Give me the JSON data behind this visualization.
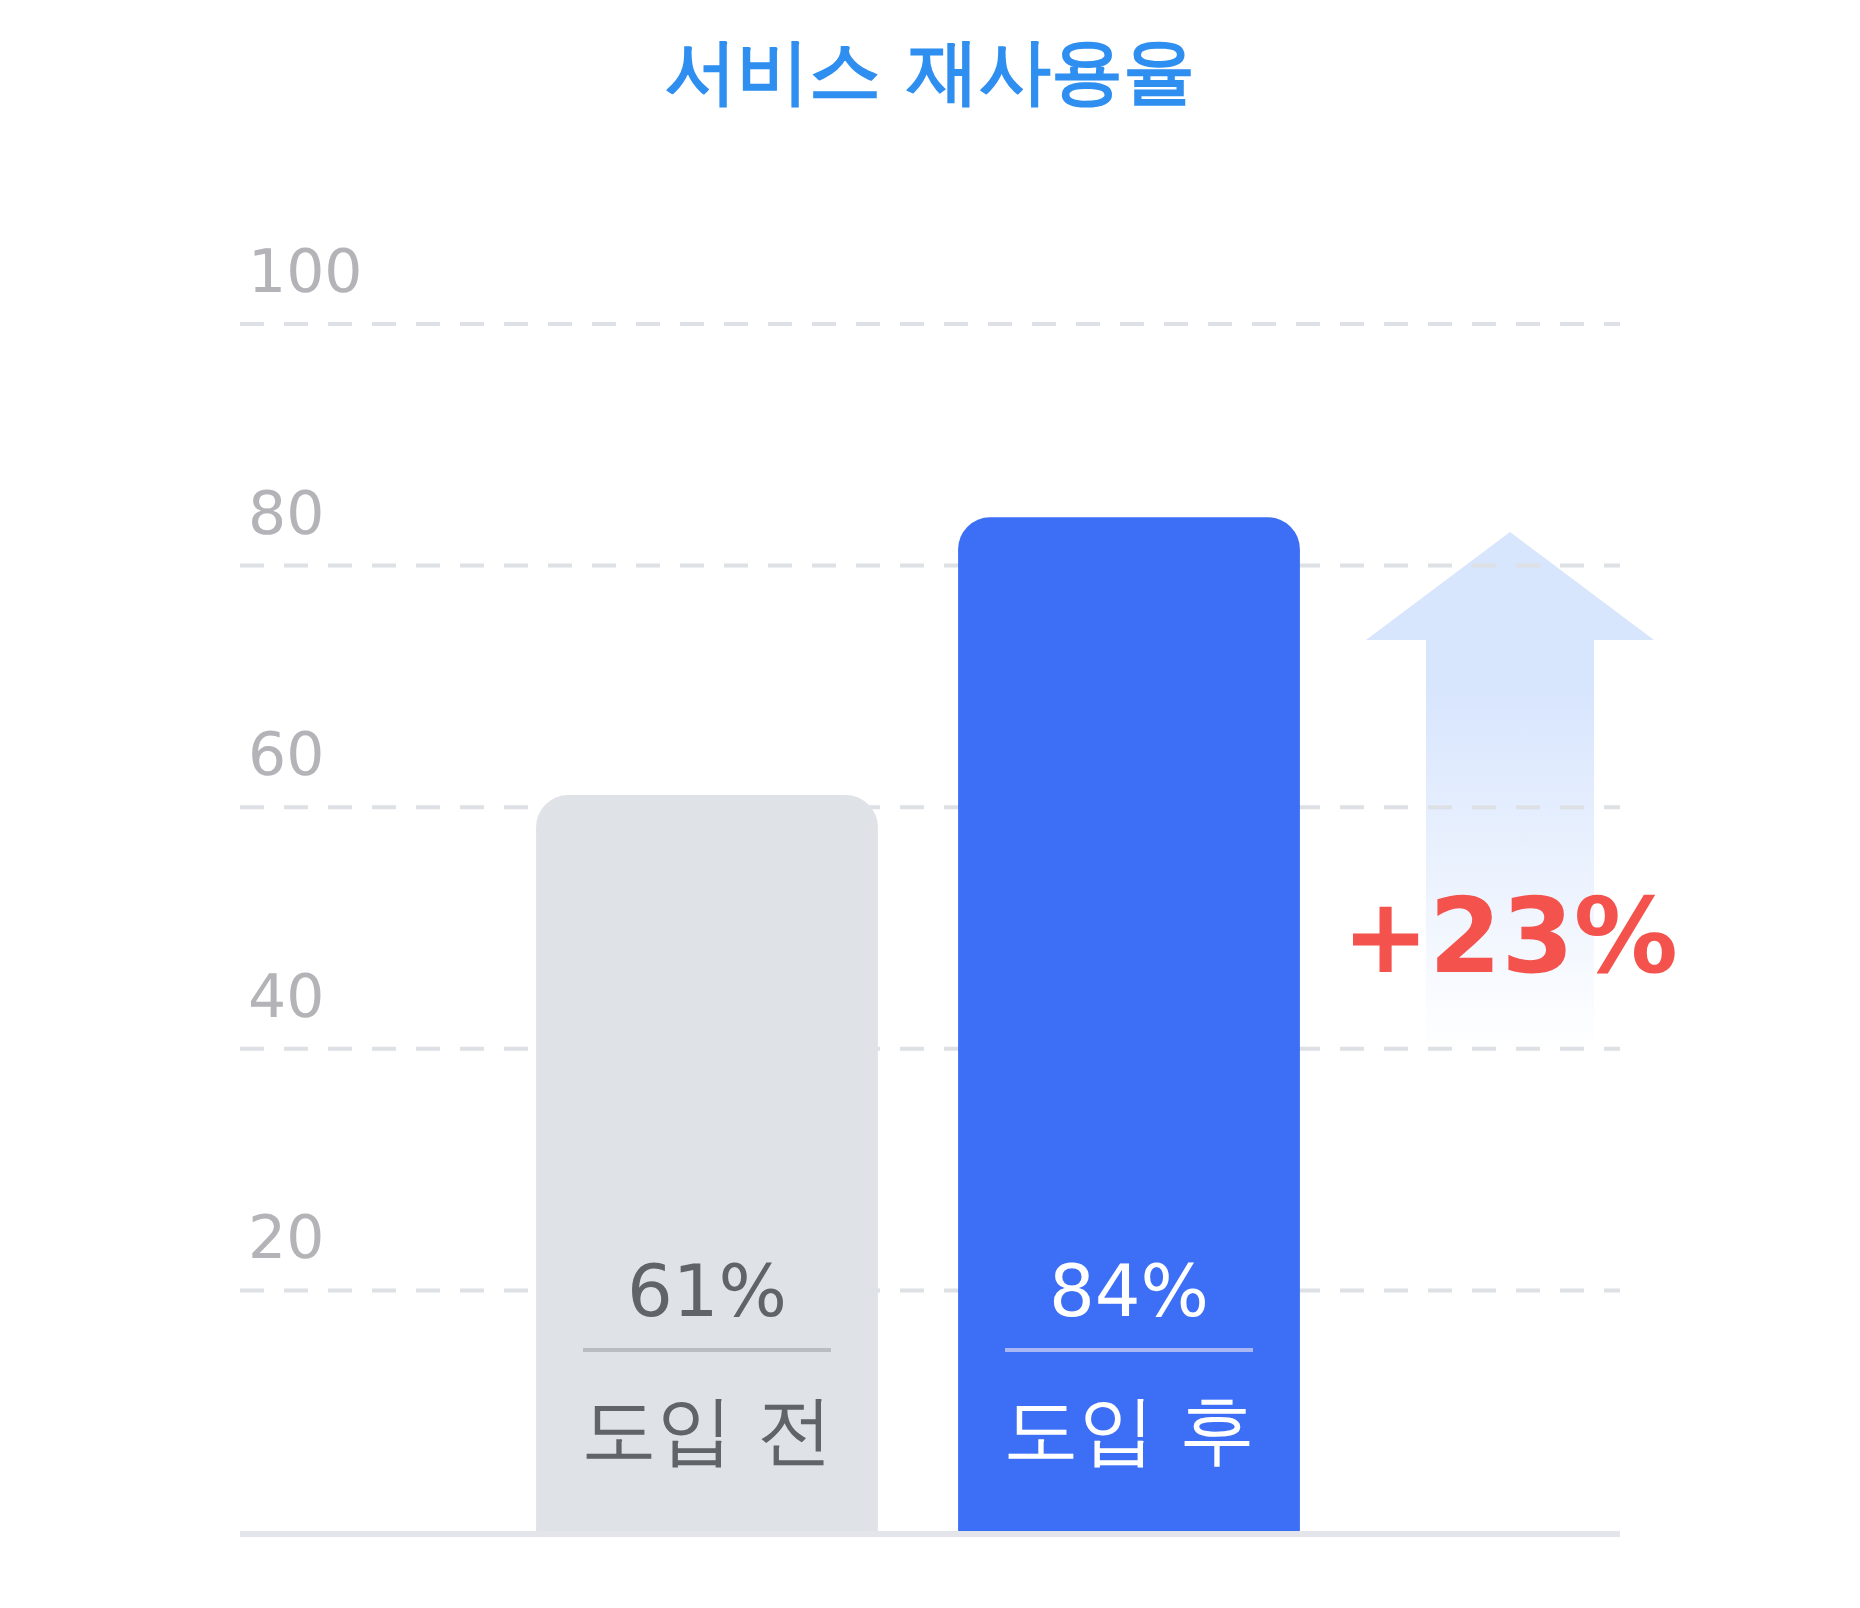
{
  "chart_data": {
    "type": "bar",
    "title": "서비스 재사용율",
    "categories": [
      "도입 전",
      "도입 후"
    ],
    "values": [
      61,
      84
    ],
    "colors": [
      "#dfe3e8",
      "#3d6ef6"
    ],
    "value_labels": [
      "61%",
      "84%"
    ],
    "ylim": [
      0,
      100
    ],
    "yticks": [
      20,
      40,
      60,
      80,
      100
    ],
    "grid": "y",
    "legend": false,
    "annotations": [
      "+23%"
    ]
  }
}
